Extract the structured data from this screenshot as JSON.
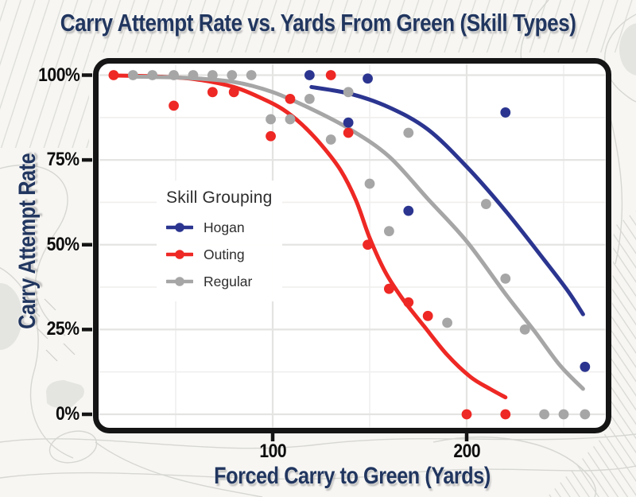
{
  "title": "Carry Attempt Rate vs. Yards From Green (Skill Types)",
  "x_axis": {
    "label": "Forced Carry to Green (Yards)",
    "ticks": [
      {
        "label": "100",
        "value": 100
      },
      {
        "label": "200",
        "value": 200
      }
    ],
    "minor_gridlines": [
      50,
      150,
      250
    ],
    "range": [
      8,
      272
    ]
  },
  "y_axis": {
    "label": "Carry Attempt Rate",
    "ticks": [
      {
        "label": "100%",
        "value": 100
      },
      {
        "label": "75%",
        "value": 75
      },
      {
        "label": "50%",
        "value": 50
      },
      {
        "label": "25%",
        "value": 25
      },
      {
        "label": "0%",
        "value": 0
      }
    ],
    "minor_gridlines": [
      12.5,
      37.5,
      62.5,
      87.5
    ],
    "range": [
      0,
      100
    ]
  },
  "legend": {
    "title": "Skill Grouping",
    "items": [
      {
        "label": "Hogan",
        "color": "#2b3590"
      },
      {
        "label": "Outing",
        "color": "#ee2824"
      },
      {
        "label": "Regular",
        "color": "#a6a6a6"
      }
    ]
  },
  "colors": {
    "title_text": "#21365f",
    "tick_text": "#0d0d0d",
    "panel_border": "#151515",
    "panel_fill": "#ffffff",
    "grid_major": "#e4e4e2",
    "grid_minor": "#f0efee",
    "background": "#f7f6f3"
  },
  "chart_data": {
    "type": "scatter",
    "title": "Carry Attempt Rate vs. Yards From Green (Skill Types)",
    "xlabel": "Forced Carry to Green (Yards)",
    "ylabel": "Carry Attempt Rate",
    "x_unit": "yards",
    "y_unit": "percent",
    "xlim": [
      8,
      272
    ],
    "ylim": [
      0,
      100
    ],
    "grid": true,
    "legend_position": "inside-left",
    "legend_title": "Skill Grouping",
    "series": [
      {
        "name": "Hogan",
        "color": "#2b3590",
        "points": [
          [
            119,
            100
          ],
          [
            139,
            86
          ],
          [
            149,
            99
          ],
          [
            170,
            60
          ],
          [
            220,
            89
          ],
          [
            261,
            14
          ]
        ],
        "trend": [
          [
            120,
            96.5
          ],
          [
            140,
            94.5
          ],
          [
            160,
            90.5
          ],
          [
            180,
            84
          ],
          [
            200,
            73
          ],
          [
            220,
            60
          ],
          [
            240,
            45.5
          ],
          [
            252,
            36.5
          ],
          [
            260,
            29.5
          ]
        ]
      },
      {
        "name": "Outing",
        "color": "#ee2824",
        "points": [
          [
            18,
            100
          ],
          [
            49,
            91
          ],
          [
            69,
            95
          ],
          [
            80,
            95
          ],
          [
            99,
            82
          ],
          [
            109,
            93
          ],
          [
            130,
            100
          ],
          [
            139,
            83
          ],
          [
            149,
            50
          ],
          [
            160,
            37
          ],
          [
            170,
            33
          ],
          [
            180,
            29
          ],
          [
            200,
            0
          ],
          [
            220,
            0
          ]
        ],
        "trend": [
          [
            18,
            99.9
          ],
          [
            40,
            99.6
          ],
          [
            60,
            98.8
          ],
          [
            80,
            96.5
          ],
          [
            95,
            93
          ],
          [
            105,
            90
          ],
          [
            115,
            85.5
          ],
          [
            125,
            79.5
          ],
          [
            135,
            72
          ],
          [
            143,
            63
          ],
          [
            150,
            52
          ],
          [
            158,
            42
          ],
          [
            167,
            34
          ],
          [
            178,
            26
          ],
          [
            190,
            17.5
          ],
          [
            202,
            11
          ],
          [
            212,
            7.5
          ],
          [
            220,
            5
          ]
        ]
      },
      {
        "name": "Regular",
        "color": "#a6a6a6",
        "points": [
          [
            28,
            100
          ],
          [
            38,
            100
          ],
          [
            49,
            100
          ],
          [
            59,
            100
          ],
          [
            69,
            100
          ],
          [
            79,
            100
          ],
          [
            89,
            100
          ],
          [
            99,
            87
          ],
          [
            109,
            87
          ],
          [
            119,
            93
          ],
          [
            130,
            81
          ],
          [
            139,
            95
          ],
          [
            150,
            68
          ],
          [
            160,
            54
          ],
          [
            170,
            83
          ],
          [
            190,
            27
          ],
          [
            210,
            62
          ],
          [
            220,
            40
          ],
          [
            230,
            25
          ],
          [
            240,
            0
          ],
          [
            250,
            0
          ],
          [
            261,
            0
          ]
        ],
        "trend": [
          [
            27,
            99.6
          ],
          [
            55,
            99.2
          ],
          [
            80,
            98
          ],
          [
            100,
            95
          ],
          [
            120,
            90
          ],
          [
            140,
            84
          ],
          [
            160,
            76
          ],
          [
            180,
            63.5
          ],
          [
            200,
            51
          ],
          [
            220,
            35.5
          ],
          [
            235,
            24.5
          ],
          [
            248,
            14.5
          ],
          [
            260,
            7.5
          ]
        ]
      }
    ]
  }
}
